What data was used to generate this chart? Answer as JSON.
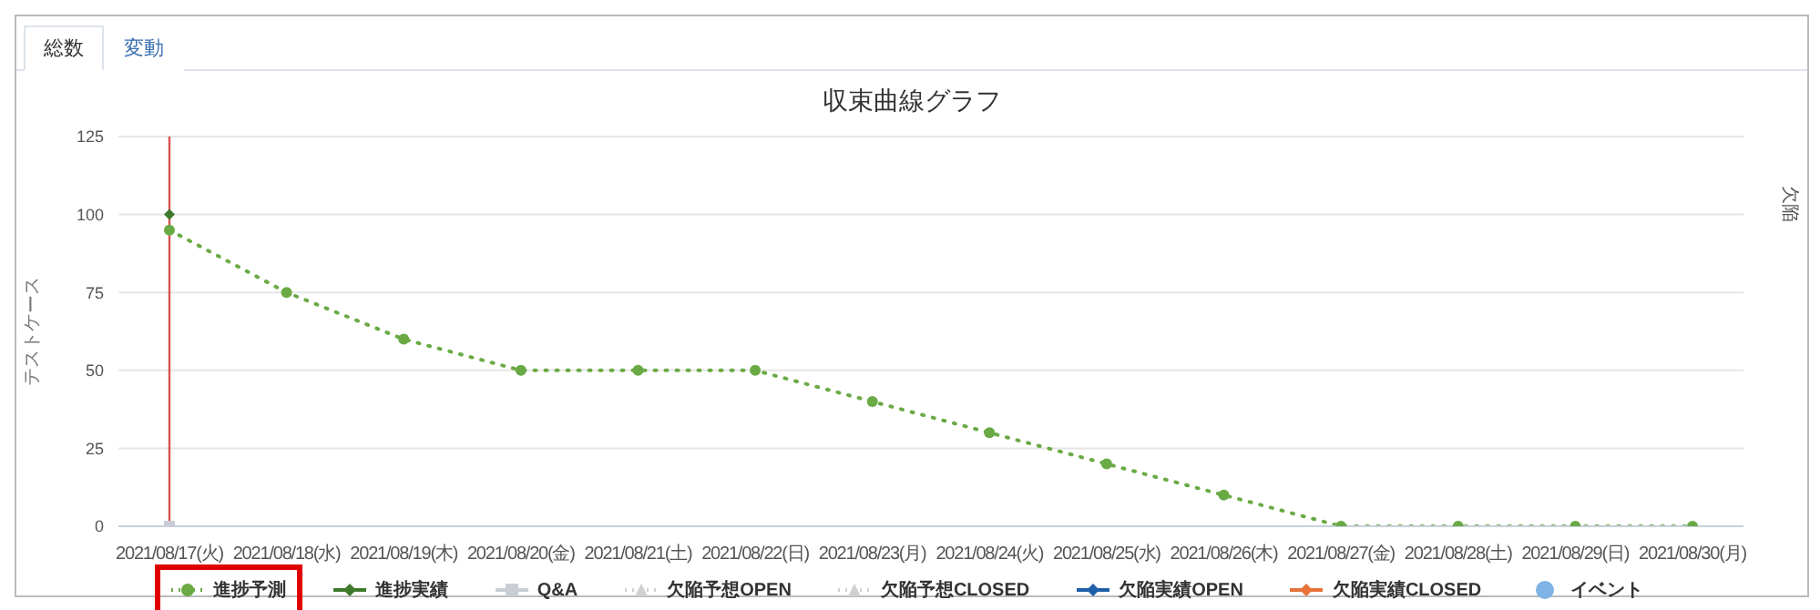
{
  "chart_data": {
    "type": "line",
    "title": "収束曲線グラフ",
    "ylabel": "テストケース",
    "y2label": "欠陥",
    "annotations": [
      "総数",
      "変動"
    ],
    "categories": [
      "2021/08/17(火)",
      "2021/08/18(水)",
      "2021/08/19(木)",
      "2021/08/20(金)",
      "2021/08/21(土)",
      "2021/08/22(日)",
      "2021/08/23(月)",
      "2021/08/24(火)",
      "2021/08/25(水)",
      "2021/08/26(木)",
      "2021/08/27(金)",
      "2021/08/28(土)",
      "2021/08/29(日)",
      "2021/08/30(月)"
    ],
    "series": [
      {
        "name": "進捗予測",
        "color": "#6aaa45",
        "marker": "circle",
        "line_style": "dotted",
        "values": [
          95,
          75,
          60,
          50,
          50,
          50,
          40,
          30,
          20,
          10,
          0,
          0,
          0,
          0
        ]
      },
      {
        "name": "進捗実績",
        "color": "#3f7a2c",
        "marker": "diamond",
        "line_style": "solid",
        "values": [
          100,
          null,
          null,
          null,
          null,
          null,
          null,
          null,
          null,
          null,
          null,
          null,
          null,
          null
        ]
      },
      {
        "name": "Q&A",
        "color": "#c9ced6",
        "marker": "square",
        "line_style": "solid",
        "values": [
          0,
          null,
          null,
          null,
          null,
          null,
          null,
          null,
          null,
          null,
          null,
          null,
          null,
          null
        ]
      },
      {
        "name": "欠陥予想OPEN",
        "color": "#d0d0d0",
        "marker": "triangle",
        "line_style": "dotted",
        "values": [
          null,
          null,
          null,
          null,
          null,
          null,
          null,
          null,
          null,
          null,
          null,
          null,
          null,
          null
        ]
      },
      {
        "name": "欠陥予想CLOSED",
        "color": "#d0d0d0",
        "marker": "triangle",
        "line_style": "dotted",
        "values": [
          null,
          null,
          null,
          null,
          null,
          null,
          null,
          null,
          null,
          null,
          null,
          null,
          null,
          null
        ]
      },
      {
        "name": "欠陥実績OPEN",
        "color": "#1f5fa8",
        "marker": "diamond",
        "line_style": "solid",
        "values": [
          null,
          null,
          null,
          null,
          null,
          null,
          null,
          null,
          null,
          null,
          null,
          null,
          null,
          null
        ]
      },
      {
        "name": "欠陥実績CLOSED",
        "color": "#e8733a",
        "marker": "diamond",
        "line_style": "solid",
        "values": [
          null,
          null,
          null,
          null,
          null,
          null,
          null,
          null,
          null,
          null,
          null,
          null,
          null,
          null
        ]
      },
      {
        "name": "イベント",
        "type": "scatter",
        "color": "#7fb2e5",
        "marker": "circle",
        "values": [
          null,
          null,
          null,
          null,
          null,
          null,
          null,
          null,
          null,
          null,
          null,
          null,
          null,
          null
        ]
      }
    ],
    "ylim": [
      0,
      125
    ],
    "yticks": [
      0,
      25,
      50,
      75,
      100,
      125
    ],
    "ref_lines": [
      {
        "axis": "x",
        "value": "2021/08/17(火)",
        "color": "#d9534f"
      }
    ],
    "grid": "y",
    "legend": "bottom"
  }
}
